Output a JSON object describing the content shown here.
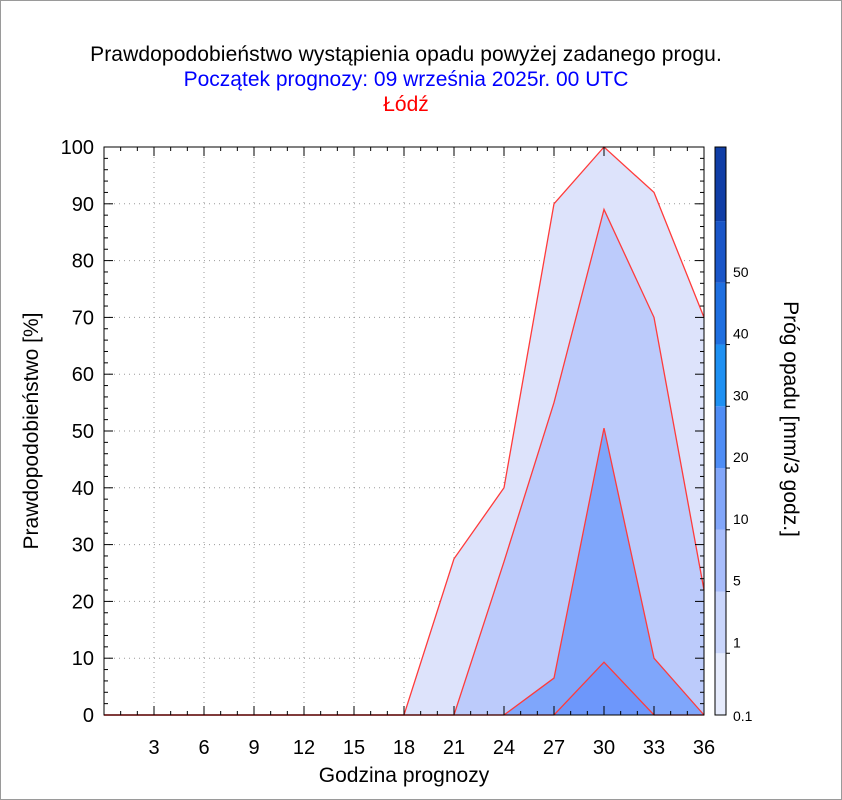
{
  "titles": {
    "main": "Prawdopodobieństwo wystąpienia opadu powyżej zadanego progu.",
    "forecast_start": "Początek prognozy: 09 września 2025r. 00 UTC",
    "location": "Łódź"
  },
  "chart_data": {
    "type": "area",
    "xlabel": "Godzina prognozy",
    "ylabel": "Prawdopodobieństwo [%]",
    "xlim": [
      0,
      36
    ],
    "ylim": [
      0,
      100
    ],
    "x_ticks": [
      3,
      6,
      9,
      12,
      15,
      18,
      21,
      24,
      27,
      30,
      33,
      36
    ],
    "y_ticks": [
      0,
      10,
      20,
      30,
      40,
      50,
      60,
      70,
      80,
      90,
      100
    ],
    "grid": true,
    "x": [
      0,
      3,
      6,
      9,
      12,
      15,
      18,
      21,
      24,
      27,
      30,
      33,
      36
    ],
    "series": [
      {
        "name": "0.1",
        "color": "#dde3fb",
        "values": [
          0,
          0,
          0,
          0,
          0,
          0,
          0,
          27.5,
          40,
          90,
          100,
          92,
          70
        ]
      },
      {
        "name": "1",
        "color": "#bccbfb",
        "values": [
          0,
          0,
          0,
          0,
          0,
          0,
          0,
          0,
          27,
          55,
          89,
          70,
          22
        ]
      },
      {
        "name": "5",
        "color": "#7fa6fb",
        "values": [
          0,
          0,
          0,
          0,
          0,
          0,
          0,
          0,
          0,
          6.5,
          50.5,
          10,
          0
        ]
      },
      {
        "name": "10",
        "color": "#6d97fb",
        "values": [
          0,
          0,
          0,
          0,
          0,
          0,
          0,
          0,
          0,
          0,
          9.3,
          0,
          0
        ]
      }
    ],
    "colorbar": {
      "title": "Próg opadu [mm/3 godz.]",
      "labels": [
        "0.1",
        "1",
        "5",
        "10",
        "20",
        "30",
        "40",
        "50"
      ],
      "colors": [
        "#e6ebfc",
        "#c9d5fb",
        "#a8bdfb",
        "#82a6f9",
        "#4f8df5",
        "#1e90f2",
        "#1f6fe0",
        "#1a56c8",
        "#103ea6"
      ]
    }
  }
}
